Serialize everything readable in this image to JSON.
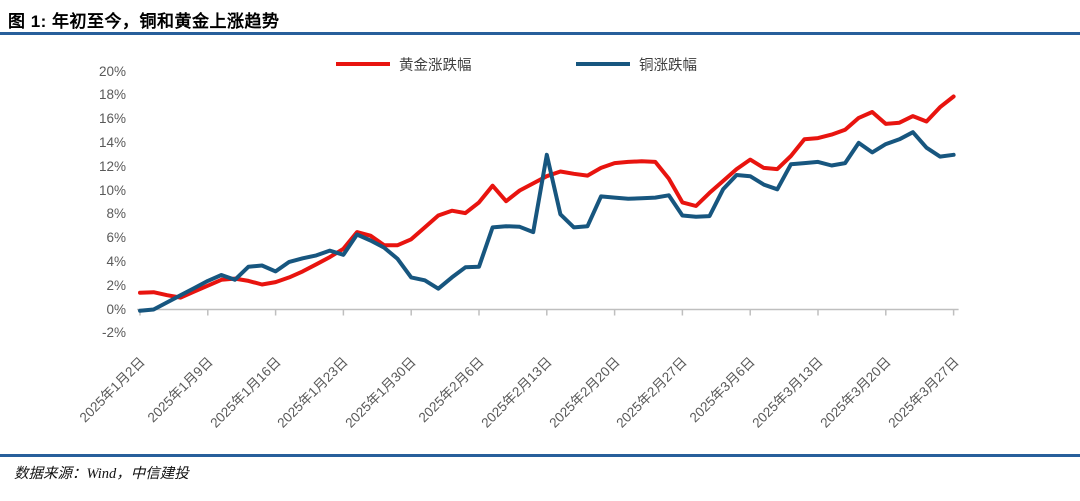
{
  "figure": {
    "title": "图 1: 年初至今，铜和黄金上涨趋势",
    "source_note": "数据来源：Wind，中信建投"
  },
  "legend": [
    {
      "label": "黄金涨跌幅",
      "color": "#e8140f"
    },
    {
      "label": "铜涨跌幅",
      "color": "#17567f"
    }
  ],
  "colors": {
    "rule_blue": "#275f9b",
    "axis_gray": "#bfbfbf",
    "tick_label_gray": "#595959"
  },
  "chart_data": {
    "type": "line",
    "title": "年初至今，铜和黄金上涨趋势",
    "xlabel": "",
    "ylabel": "",
    "ylim": [
      -2,
      20
    ],
    "grid": false,
    "legend_position": "top",
    "y_tick_labels": [
      "20%",
      "18%",
      "16%",
      "14%",
      "12%",
      "10%",
      "8%",
      "6%",
      "4%",
      "2%",
      "0%",
      "-2%"
    ],
    "y_tick_values": [
      20,
      18,
      16,
      14,
      12,
      10,
      8,
      6,
      4,
      2,
      0,
      -2
    ],
    "x": [
      "2025/1/2",
      "2025/1/3",
      "2025/1/6",
      "2025/1/7",
      "2025/1/8",
      "2025/1/9",
      "2025/1/10",
      "2025/1/13",
      "2025/1/14",
      "2025/1/15",
      "2025/1/16",
      "2025/1/17",
      "2025/1/20",
      "2025/1/21",
      "2025/1/22",
      "2025/1/23",
      "2025/1/24",
      "2025/1/27",
      "2025/1/28",
      "2025/1/29",
      "2025/1/30",
      "2025/1/31",
      "2025/2/3",
      "2025/2/4",
      "2025/2/5",
      "2025/2/6",
      "2025/2/7",
      "2025/2/10",
      "2025/2/11",
      "2025/2/12",
      "2025/2/13",
      "2025/2/14",
      "2025/2/17",
      "2025/2/18",
      "2025/2/19",
      "2025/2/20",
      "2025/2/21",
      "2025/2/24",
      "2025/2/25",
      "2025/2/26",
      "2025/2/27",
      "2025/2/28",
      "2025/3/3",
      "2025/3/4",
      "2025/3/5",
      "2025/3/6",
      "2025/3/7",
      "2025/3/10",
      "2025/3/11",
      "2025/3/12",
      "2025/3/13",
      "2025/3/14",
      "2025/3/17",
      "2025/3/18",
      "2025/3/19",
      "2025/3/20",
      "2025/3/21",
      "2025/3/24",
      "2025/3/25",
      "2025/3/26",
      "2025/3/27"
    ],
    "x_tick_labels": [
      "2025年1月2日",
      "2025年1月9日",
      "2025年1月16日",
      "2025年1月23日",
      "2025年1月30日",
      "2025年2月6日",
      "2025年2月13日",
      "2025年2月20日",
      "2025年2月27日",
      "2025年3月6日",
      "2025年3月13日",
      "2025年3月20日",
      "2025年3月27日"
    ],
    "x_tick_every": 5,
    "series": [
      {
        "name": "黄金涨跌幅",
        "color": "#e8140f",
        "unit": "%",
        "values": [
          1.4,
          1.45,
          1.2,
          1.0,
          1.5,
          2.0,
          2.5,
          2.6,
          2.4,
          2.1,
          2.3,
          2.7,
          3.2,
          3.8,
          4.4,
          5.1,
          6.5,
          6.2,
          5.4,
          5.4,
          5.9,
          6.9,
          7.9,
          8.3,
          8.1,
          9.0,
          10.4,
          9.1,
          10.0,
          10.6,
          11.2,
          11.6,
          11.4,
          11.25,
          11.9,
          12.3,
          12.4,
          12.45,
          12.4,
          11.0,
          9.0,
          8.7,
          9.8,
          10.8,
          11.8,
          12.6,
          11.9,
          11.8,
          12.9,
          14.3,
          14.4,
          14.7,
          15.1,
          16.1,
          16.6,
          15.6,
          15.7,
          16.25,
          15.8,
          17.0,
          17.9
        ]
      },
      {
        "name": "铜涨跌幅",
        "color": "#17567f",
        "unit": "%",
        "values": [
          -0.1,
          0.0,
          0.6,
          1.2,
          1.8,
          2.4,
          2.9,
          2.5,
          3.6,
          3.7,
          3.2,
          4.0,
          4.3,
          4.55,
          4.95,
          4.6,
          6.3,
          5.8,
          5.2,
          4.25,
          2.7,
          2.45,
          1.75,
          2.7,
          3.55,
          3.6,
          6.9,
          7.0,
          6.95,
          6.5,
          13.0,
          8.0,
          6.9,
          7.0,
          9.5,
          9.4,
          9.3,
          9.35,
          9.4,
          9.6,
          7.9,
          7.8,
          7.85,
          10.1,
          11.3,
          11.2,
          10.5,
          10.1,
          12.2,
          12.3,
          12.4,
          12.1,
          12.3,
          14.0,
          13.2,
          13.9,
          14.3,
          14.9,
          13.6,
          12.85,
          13.0
        ]
      }
    ]
  }
}
